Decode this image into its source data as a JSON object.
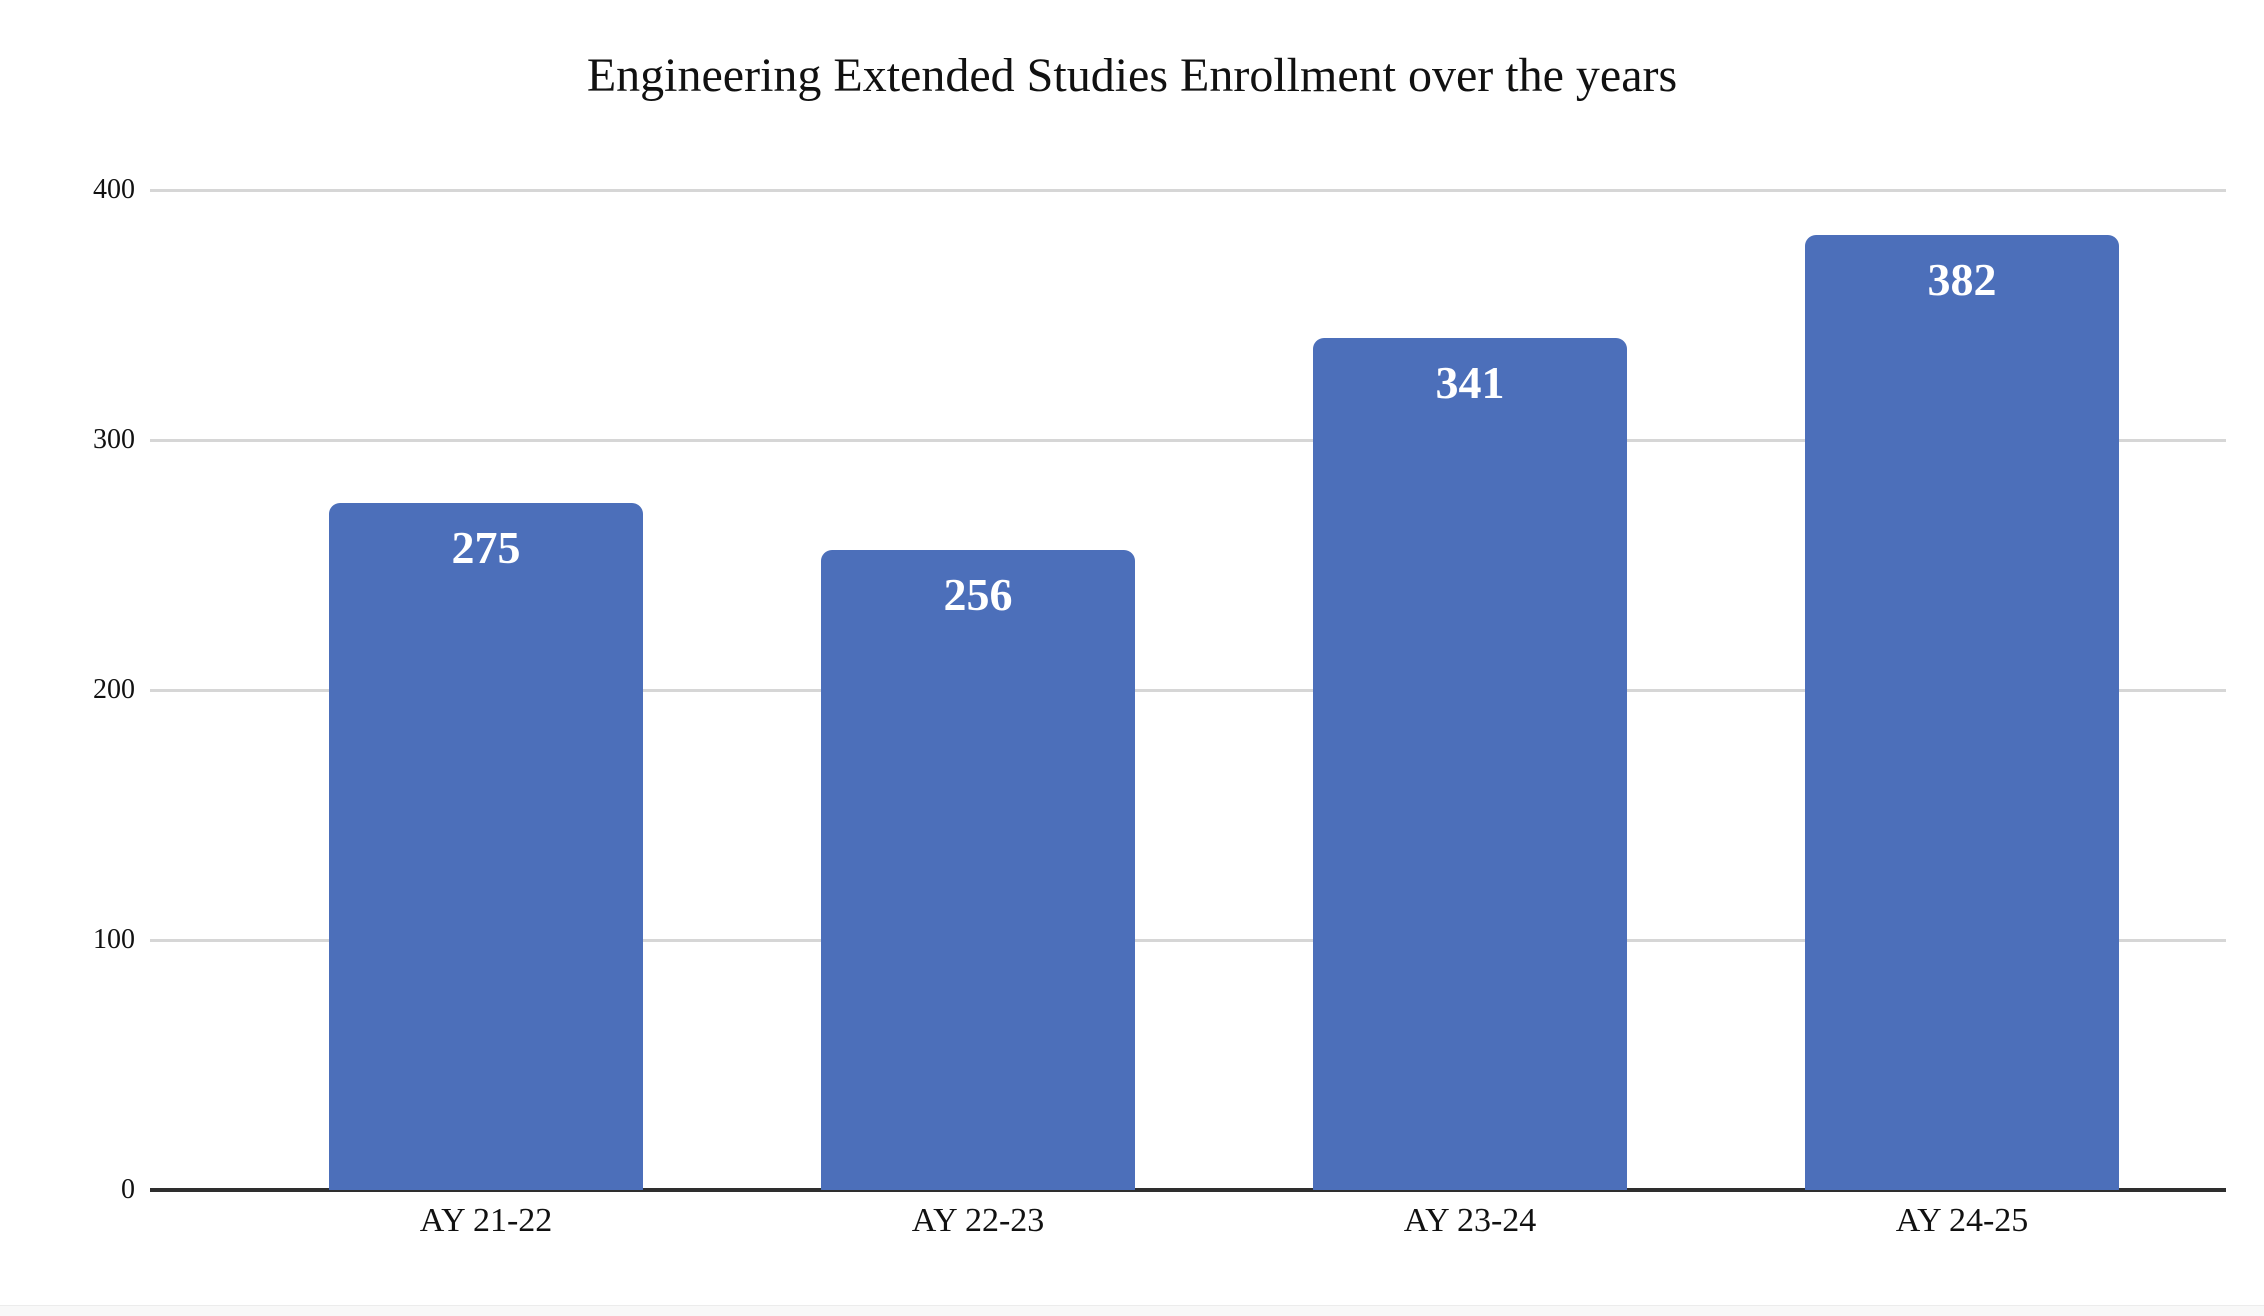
{
  "chart_data": {
    "type": "bar",
    "title": "Engineering Extended Studies Enrollment over the years",
    "categories": [
      "AY 21-22",
      "AY 22-23",
      "AY 23-24",
      "AY 24-25"
    ],
    "values": [
      275,
      256,
      341,
      382
    ],
    "xlabel": "",
    "ylabel": "",
    "ylim": [
      0,
      400
    ],
    "yticks": [
      0,
      100,
      200,
      300,
      400
    ],
    "grid": "horizontal",
    "legend": "none",
    "bar_color": "#4c6fba",
    "value_label_color": "#ffffff",
    "gridline_color": "#d6d6d6",
    "axis_color": "#2e2e2e",
    "title_color": "#111111",
    "tick_label_color": "#111111"
  }
}
